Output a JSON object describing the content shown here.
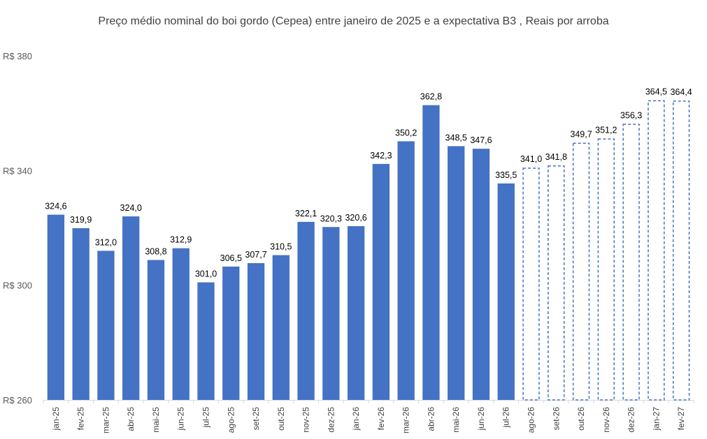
{
  "chart_data": {
    "type": "bar",
    "title": "Preço médio nominal do boi gordo (Cepea) entre janeiro de 2025 e a expectativa B3 , Reais por arroba",
    "xlabel": "",
    "ylabel": "",
    "ylim": [
      260,
      380
    ],
    "yticks": [
      260,
      300,
      340,
      380
    ],
    "ytick_labels": [
      "R$ 260",
      "R$ 300",
      "R$ 340",
      "R$ 380"
    ],
    "grid": false,
    "legend": "none",
    "categories": [
      "jan-25",
      "fev-25",
      "mar-25",
      "abr-25",
      "mai-25",
      "jun-25",
      "jul-25",
      "ago-25",
      "set-25",
      "out-25",
      "nov-25",
      "dez-25",
      "jan-26",
      "fev-26",
      "mar-26",
      "abr-26",
      "mai-26",
      "jun-26",
      "jul-26",
      "ago-26",
      "set-26",
      "out-26",
      "nov-26",
      "dez-26",
      "jan-27",
      "fev-27"
    ],
    "values": [
      324.6,
      319.9,
      312.0,
      324.0,
      308.8,
      312.9,
      301.0,
      306.5,
      307.7,
      310.5,
      322.1,
      320.3,
      320.6,
      342.3,
      350.2,
      362.8,
      348.5,
      347.6,
      335.5,
      341.0,
      341.8,
      349.7,
      351.2,
      356.3,
      364.5,
      364.4
    ],
    "value_labels": [
      "324,6",
      "319,9",
      "312,0",
      "324,0",
      "308,8",
      "312,9",
      "301,0",
      "306,5",
      "307,7",
      "310,5",
      "322,1",
      "320,3",
      "320,6",
      "342,3",
      "350,2",
      "362,8",
      "348,5",
      "347,6",
      "335,5",
      "341,0",
      "341,8",
      "349,7",
      "351,2",
      "356,3",
      "364,5",
      "364,4"
    ],
    "styles": [
      "solid",
      "solid",
      "solid",
      "solid",
      "solid",
      "solid",
      "solid",
      "solid",
      "solid",
      "solid",
      "solid",
      "solid",
      "solid",
      "solid",
      "solid",
      "solid",
      "solid",
      "solid",
      "solid",
      "dashed",
      "dashed",
      "dashed",
      "dashed",
      "dashed",
      "dashed",
      "dashed"
    ],
    "colors": {
      "bar": "#4472C4",
      "axis": "#D9D9D9",
      "text": "#404040"
    }
  }
}
